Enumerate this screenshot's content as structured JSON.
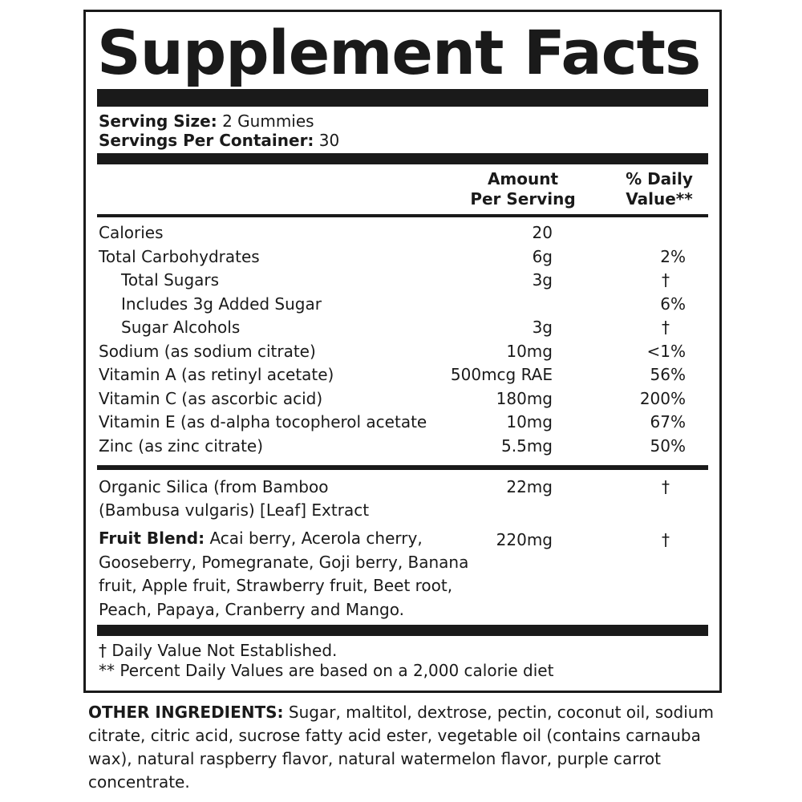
{
  "title": "Supplement Facts",
  "serving": {
    "size_label": "Serving Size:",
    "size_value": " 2 Gummies",
    "per_container_label": "Servings Per Container:",
    "per_container_value": " 30"
  },
  "headers": {
    "amount_line1": "Amount",
    "amount_line2": "Per Serving",
    "dv_line1": "% Daily",
    "dv_line2": "Value**"
  },
  "rows": [
    {
      "name": "Calories",
      "amount": "20",
      "dv": "",
      "indent": false
    },
    {
      "name": "Total Carbohydrates",
      "amount": "6g",
      "dv": "2%",
      "indent": false
    },
    {
      "name": "Total Sugars",
      "amount": "3g",
      "dv": "†",
      "indent": true
    },
    {
      "name": "Includes 3g Added Sugar",
      "amount": "",
      "dv": "6%",
      "indent": true
    },
    {
      "name": "Sugar Alcohols",
      "amount": "3g",
      "dv": "†",
      "indent": true
    },
    {
      "name": "Sodium (as sodium citrate)",
      "amount": "10mg",
      "dv": "<1%",
      "indent": false
    },
    {
      "name": "Vitamin A (as retinyl acetate)",
      "amount": "500mcg RAE",
      "dv": "56%",
      "indent": false
    },
    {
      "name": "Vitamin C (as ascorbic acid)",
      "amount": "180mg",
      "dv": "200%",
      "indent": false
    },
    {
      "name": "Vitamin E (as d-alpha tocopherol acetate",
      "amount": "10mg",
      "dv": "67%",
      "indent": false
    },
    {
      "name": "Zinc (as zinc citrate)",
      "amount": "5.5mg",
      "dv": "50%",
      "indent": false
    }
  ],
  "silica": {
    "line1": "Organic Silica (from Bamboo",
    "line2": "(Bambusa vulgaris) [Leaf] Extract",
    "amount": "22mg",
    "dv": "†"
  },
  "fruit_blend": {
    "label": "Fruit Blend:",
    "line1": " Acai berry, Acerola cherry,",
    "line2": "Gooseberry, Pomegranate, Goji berry, Banana",
    "line3": "fruit, Apple fruit, Strawberry fruit, Beet root,",
    "line4": "Peach, Papaya, Cranberry and Mango.",
    "amount": "220mg",
    "dv": "†"
  },
  "footnotes": {
    "dagger": "† Daily Value Not Established.",
    "percent": "** Percent Daily Values are based on a 2,000 calorie diet"
  },
  "other_ingredients": {
    "label": "OTHER INGREDIENTS:",
    "text": " Sugar, maltitol, dextrose, pectin, coconut oil, sodium citrate, citric acid, sucrose fatty acid ester, vegetable oil (contains carnauba wax), natural raspberry flavor, natural watermelon flavor, purple carrot concentrate."
  }
}
